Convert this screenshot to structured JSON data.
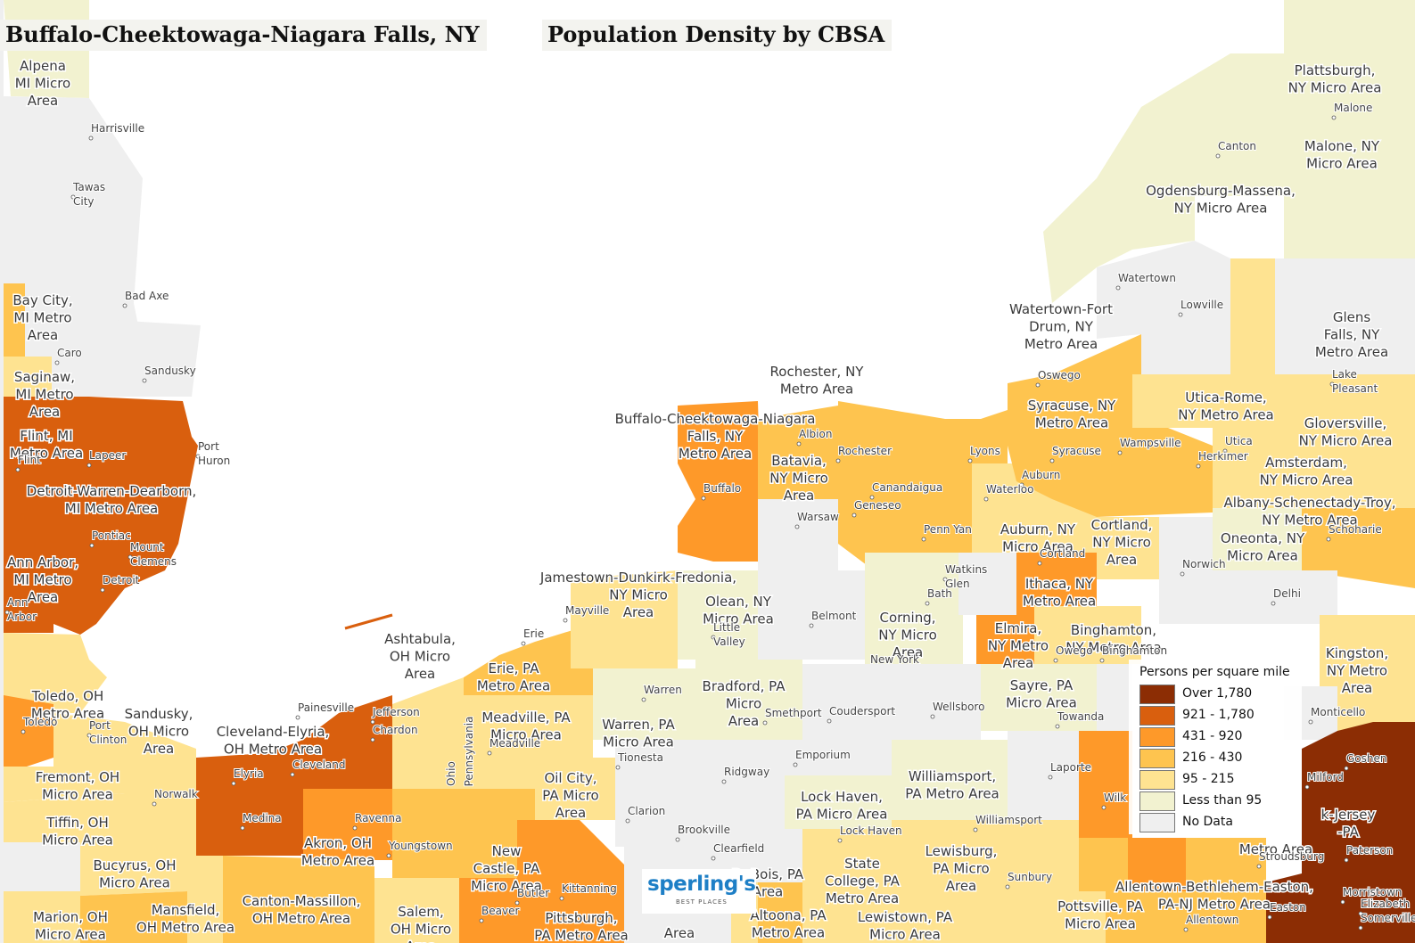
{
  "titles": {
    "region": "Buffalo-Cheektowaga-Niagara Falls, NY",
    "map": "Population Density by CBSA"
  },
  "legend": {
    "title": "Persons per square mile",
    "items": [
      {
        "label": "Over 1,780",
        "color": "#8c2d04"
      },
      {
        "label": "921 - 1,780",
        "color": "#d95f0e"
      },
      {
        "label": "431 - 920",
        "color": "#fe9929"
      },
      {
        "label": "216 - 430",
        "color": "#fec44f"
      },
      {
        "label": "95 - 215",
        "color": "#fee391"
      },
      {
        "label": "Less than 95",
        "color": "#f2f2d0"
      },
      {
        "label": "No Data",
        "color": "#efefef"
      }
    ]
  },
  "logo": {
    "main": "sperling's",
    "sub": "BEST PLACES"
  },
  "colors": {
    "water": "#ffffff",
    "boundary": "#ffffff"
  },
  "areas": [
    "Alpena, MI Micro Area",
    "Bay City, MI Metro Area",
    "Saginaw, MI Metro Area",
    "Flint, MI Metro Area",
    "Detroit-Warren-Dearborn, MI Metro Area",
    "Ann Arbor, MI Metro Area",
    "Toledo, OH Metro Area",
    "Sandusky, OH Micro Area",
    "Fremont, OH Micro Area",
    "Tiffin, OH Micro Area",
    "Bucyrus, OH Micro Area",
    "Marion, OH Micro Area",
    "Mansfield, OH Metro Area",
    "Cleveland-Elyria, OH Metro Area",
    "Akron, OH Metro Area",
    "Canton-Massillon, OH Metro Area",
    "Salem, OH Micro Area",
    "Ashtabula, OH Micro Area",
    "Youngstown",
    "New Castle, PA Micro Area",
    "Pittsburgh, PA Metro Area",
    "Erie, PA Metro Area",
    "Meadville, PA Micro Area",
    "Oil City, PA Micro Area",
    "Warren, PA Micro Area",
    "Jamestown-Dunkirk-Fredonia, NY Micro Area",
    "Olean, NY Micro Area",
    "Buffalo-Cheektowaga-Niagara Falls, NY Metro Area",
    "Batavia, NY Micro Area",
    "Rochester, NY Metro Area",
    "Bradford, PA Micro Area",
    "Corning, NY Micro Area",
    "Elmira, NY Metro Area",
    "Ithaca, NY Metro Area",
    "Binghamton, NY Metro Area",
    "Sayre, PA Micro Area",
    "Auburn, NY Micro Area",
    "Cortland, NY Micro Area",
    "Syracuse, NY Metro Area",
    "Watertown-Fort Drum, NY Metro Area",
    "Ogdensburg-Massena, NY Micro Area",
    "Malone, NY Micro Area",
    "Plattsburgh, NY Micro Area",
    "Utica-Rome, NY Metro Area",
    "Glens Falls, NY Metro Area",
    "Gloversville, NY Micro Area",
    "Amsterdam, NY Micro Area",
    "Albany-Schenectady-Troy, NY Metro Area",
    "Oneonta, NY Micro Area",
    "Kingston, NY Metro Area",
    "Williamsport, PA Metro Area",
    "Lock Haven, PA Micro Area",
    "Lewisburg, PA Micro Area",
    "State College, PA Metro Area",
    "Lewistown, PA Micro Area",
    "Altoona, PA Metro Area",
    "DuBois, PA Micro Area",
    "Pottsville, PA Micro Area",
    "Allentown-Bethlehem-Easton, PA-NJ Metro Area",
    "New York-Newark-Jersey City, NY-NJ-PA Metro Area"
  ],
  "area_labels": [
    {
      "id": "alpena",
      "lines": [
        "Alpena",
        "MI Micro",
        "Area"
      ]
    },
    {
      "id": "baycity",
      "lines": [
        "Bay City,",
        "MI Metro",
        "Area"
      ]
    },
    {
      "id": "saginaw",
      "lines": [
        "Saginaw,",
        "MI Metro",
        "Area"
      ]
    },
    {
      "id": "flint",
      "lines": [
        "Flint, MI",
        "Metro Area"
      ]
    },
    {
      "id": "detroit",
      "lines": [
        "Detroit-Warren-Dearborn,",
        "MI Metro Area"
      ]
    },
    {
      "id": "annarbor",
      "lines": [
        "Ann Arbor,",
        "MI Metro",
        "Area"
      ]
    },
    {
      "id": "toledo",
      "lines": [
        "Toledo, OH",
        "Metro Area"
      ]
    },
    {
      "id": "sandusky",
      "lines": [
        "Sandusky,",
        "OH Micro",
        "Area"
      ]
    },
    {
      "id": "fremont",
      "lines": [
        "Fremont, OH",
        "Micro Area"
      ]
    },
    {
      "id": "tiffin",
      "lines": [
        "Tiffin, OH",
        "Micro Area"
      ]
    },
    {
      "id": "bucyrus",
      "lines": [
        "Bucyrus, OH",
        "Micro Area"
      ]
    },
    {
      "id": "marion",
      "lines": [
        "Marion, OH",
        "Micro Area"
      ]
    },
    {
      "id": "mansfield",
      "lines": [
        "Mansfield,",
        "OH Metro Area"
      ]
    },
    {
      "id": "cleveland",
      "lines": [
        "Cleveland-Elyria,",
        "OH Metro Area"
      ]
    },
    {
      "id": "akron",
      "lines": [
        "Akron, OH",
        "Metro Area"
      ]
    },
    {
      "id": "canton",
      "lines": [
        "Canton-Massillon,",
        "OH Metro Area"
      ]
    },
    {
      "id": "salem",
      "lines": [
        "Salem,",
        "OH Micro",
        "Area"
      ]
    },
    {
      "id": "ashtabula",
      "lines": [
        "Ashtabula,",
        "OH Micro",
        "Area"
      ]
    },
    {
      "id": "newcastle",
      "lines": [
        "New",
        "Castle, PA",
        "Micro Area"
      ]
    },
    {
      "id": "pittsburgh",
      "lines": [
        "Pittsburgh,",
        "PA Metro Area"
      ]
    },
    {
      "id": "erie",
      "lines": [
        "Erie, PA",
        "Metro Area"
      ]
    },
    {
      "id": "meadville",
      "lines": [
        "Meadville, PA",
        "Micro Area"
      ]
    },
    {
      "id": "oilcity",
      "lines": [
        "Oil City,",
        "PA Micro",
        "Area"
      ]
    },
    {
      "id": "warren",
      "lines": [
        "Warren, PA",
        "Micro Area"
      ]
    },
    {
      "id": "jamestown",
      "lines": [
        "Jamestown-Dunkirk-Fredonia,",
        "NY Micro",
        "Area"
      ]
    },
    {
      "id": "olean",
      "lines": [
        "Olean, NY",
        "Micro Area"
      ]
    },
    {
      "id": "buffalo",
      "lines": [
        "Buffalo-Cheektowaga-Niagara",
        "Falls, NY",
        "Metro Area"
      ]
    },
    {
      "id": "batavia",
      "lines": [
        "Batavia,",
        "NY Micro",
        "Area"
      ]
    },
    {
      "id": "rochester",
      "lines": [
        "Rochester, NY",
        "Metro Area"
      ]
    },
    {
      "id": "bradford",
      "lines": [
        "Bradford, PA",
        "Micro",
        "Area"
      ]
    },
    {
      "id": "corning",
      "lines": [
        "Corning,",
        "NY Micro",
        "Area"
      ]
    },
    {
      "id": "elmira",
      "lines": [
        "Elmira,",
        "NY Metro",
        "Area"
      ]
    },
    {
      "id": "ithaca",
      "lines": [
        "Ithaca, NY",
        "Metro Area"
      ]
    },
    {
      "id": "binghamton",
      "lines": [
        "Binghamton,",
        "NY Metro Area"
      ]
    },
    {
      "id": "sayre",
      "lines": [
        "Sayre, PA",
        "Micro Area"
      ]
    },
    {
      "id": "auburn",
      "lines": [
        "Auburn, NY",
        "Micro Area"
      ]
    },
    {
      "id": "cortland",
      "lines": [
        "Cortland,",
        "NY Micro",
        "Area"
      ]
    },
    {
      "id": "syracuse",
      "lines": [
        "Syracuse, NY",
        "Metro Area"
      ]
    },
    {
      "id": "watertown",
      "lines": [
        "Watertown-Fort",
        "Drum, NY",
        "Metro Area"
      ]
    },
    {
      "id": "ogdensburg",
      "lines": [
        "Ogdensburg-Massena,",
        "NY Micro Area"
      ]
    },
    {
      "id": "malone",
      "lines": [
        "Malone, NY",
        "Micro Area"
      ]
    },
    {
      "id": "plattsburgh",
      "lines": [
        "Plattsburgh,",
        "NY Micro Area"
      ]
    },
    {
      "id": "utica",
      "lines": [
        "Utica-Rome,",
        "NY Metro Area"
      ]
    },
    {
      "id": "glensfalls",
      "lines": [
        "Glens",
        "Falls, NY",
        "Metro Area"
      ]
    },
    {
      "id": "gloversville",
      "lines": [
        "Gloversville,",
        "NY Micro Area"
      ]
    },
    {
      "id": "amsterdam",
      "lines": [
        "Amsterdam,",
        "NY Micro Area"
      ]
    },
    {
      "id": "albany",
      "lines": [
        "Albany-Schenectady-Troy,",
        "NY Metro Area"
      ]
    },
    {
      "id": "oneonta",
      "lines": [
        "Oneonta, NY",
        "Micro Area"
      ]
    },
    {
      "id": "kingston",
      "lines": [
        "Kingston,",
        "NY Metro",
        "Area"
      ]
    },
    {
      "id": "williamsport",
      "lines": [
        "Williamsport,",
        "PA Metro Area"
      ]
    },
    {
      "id": "lockhaven",
      "lines": [
        "Lock Haven,",
        "PA Micro Area"
      ]
    },
    {
      "id": "lewisburg",
      "lines": [
        "Lewisburg,",
        "PA Micro",
        "Area"
      ]
    },
    {
      "id": "statecollege",
      "lines": [
        "State",
        "College, PA",
        "Metro Area"
      ]
    },
    {
      "id": "lewistown",
      "lines": [
        "Lewistown, PA",
        "Micro Area"
      ]
    },
    {
      "id": "altoona",
      "lines": [
        "Altoona, PA",
        "Metro Area"
      ]
    },
    {
      "id": "dubois",
      "lines": [
        "DuBois, PA",
        "Area"
      ]
    },
    {
      "id": "pottsville",
      "lines": [
        "Pottsville, PA",
        "Micro Area"
      ]
    },
    {
      "id": "allentown",
      "lines": [
        "Allentown-Bethlehem-Easton,",
        "PA-NJ Metro Area"
      ]
    },
    {
      "id": "newyork",
      "lines": [
        "k-Jersey",
        "-PA"
      ]
    },
    {
      "id": "newyork2",
      "lines": [
        "Metro Area"
      ]
    },
    {
      "id": "pittsburgh2",
      "lines": [
        "Area"
      ]
    }
  ],
  "cities": [
    "Harrisville",
    "Tawas City",
    "Bad Axe",
    "Caro",
    "Sandusky",
    "Port Huron",
    "Flint",
    "Lapeer",
    "Pontiac",
    "Mount Clemens",
    "Detroit",
    "Ann Arbor",
    "Toledo",
    "Port Clinton",
    "Norwalk",
    "Elyria",
    "Cleveland",
    "Painesville",
    "Jefferson",
    "Chardon",
    "Medina",
    "Ravenna",
    "Youngstown",
    "Ohio",
    "Pennsylvania",
    "Erie",
    "Mayville",
    "Warren",
    "Meadville",
    "Tionesta",
    "Clarion",
    "Ridgway",
    "Brookville",
    "Clearfield",
    "Butler",
    "Kittanning",
    "Beaver",
    "Buffalo",
    "Albion",
    "Rochester",
    "Canandaigua",
    "Geneseo",
    "Warsaw",
    "Belmont",
    "Little Valley",
    "Smethport",
    "Coudersport",
    "Emporium",
    "Lock Haven",
    "Williamsport",
    "Wellsboro",
    "Laporte",
    "Sunbury",
    "Penn Yan",
    "Watkins Glen",
    "Bath",
    "New York",
    "Lyons",
    "Waterloo",
    "Auburn",
    "Syracuse",
    "Oswego",
    "Cortland",
    "Owego",
    "Binghamton",
    "Towanda",
    "Wampsville",
    "Utica",
    "Herkimer",
    "Norwich",
    "Delhi",
    "Schoharie",
    "Watertown",
    "Lowville",
    "Canton",
    "Malone",
    "Lake Pleasant",
    "Monticello",
    "Goshen",
    "Milford",
    "Stroudsburg",
    "Paterson",
    "Morristown",
    "Elizabeth",
    "Somerville",
    "Easton",
    "Allentown",
    "Wilk"
  ]
}
